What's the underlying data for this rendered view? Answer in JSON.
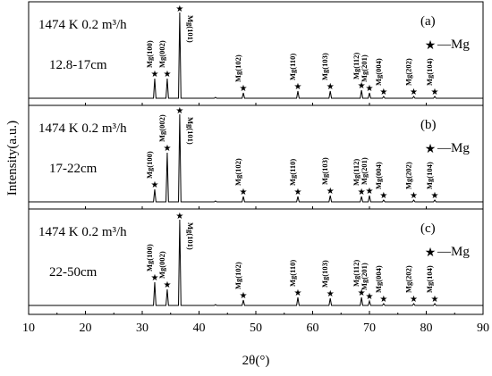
{
  "chart_data": {
    "type": "line",
    "xlabel": "2θ(°)",
    "ylabel": "Intensity(a.u.)",
    "xlim": [
      10,
      90
    ],
    "x_ticks": [
      "10",
      "20",
      "30",
      "40",
      "50",
      "60",
      "70",
      "80",
      "90"
    ],
    "legend_label": "—Mg",
    "panels": [
      {
        "panel_label": "(a)",
        "condition": "1474 K   0.2 m³/h",
        "range": "12.8-17cm",
        "peaks": [
          {
            "two_theta": 32.2,
            "intensity": 0.22,
            "label": "Mg(100)"
          },
          {
            "two_theta": 34.4,
            "intensity": 0.22,
            "label": "Mg(002)"
          },
          {
            "two_theta": 36.6,
            "intensity": 0.96,
            "label": "Mg(101)"
          },
          {
            "two_theta": 42.9,
            "intensity": 0.01,
            "label": ""
          },
          {
            "two_theta": 47.8,
            "intensity": 0.06,
            "label": "Mg(102)"
          },
          {
            "two_theta": 57.4,
            "intensity": 0.08,
            "label": "Mg(110)"
          },
          {
            "two_theta": 63.1,
            "intensity": 0.08,
            "label": "Mg(103)"
          },
          {
            "two_theta": 68.6,
            "intensity": 0.09,
            "label": "Mg(112)"
          },
          {
            "two_theta": 70.0,
            "intensity": 0.06,
            "label": "Mg(201)"
          },
          {
            "two_theta": 72.5,
            "intensity": 0.02,
            "label": "Mg(004)"
          },
          {
            "two_theta": 77.8,
            "intensity": 0.02,
            "label": "Mg(202)"
          },
          {
            "two_theta": 81.5,
            "intensity": 0.02,
            "label": "Mg(104)"
          }
        ]
      },
      {
        "panel_label": "(b)",
        "condition": "1474 K   0.2 m³/h",
        "range": "17-22cm",
        "peaks": [
          {
            "two_theta": 32.2,
            "intensity": 0.14,
            "label": "Mg(100)"
          },
          {
            "two_theta": 34.4,
            "intensity": 0.55,
            "label": "Mg(002)"
          },
          {
            "two_theta": 36.6,
            "intensity": 0.98,
            "label": "Mg(101)"
          },
          {
            "two_theta": 42.9,
            "intensity": 0.01,
            "label": ""
          },
          {
            "two_theta": 47.8,
            "intensity": 0.06,
            "label": "Mg(102)"
          },
          {
            "two_theta": 57.4,
            "intensity": 0.06,
            "label": "Mg(110)"
          },
          {
            "two_theta": 63.1,
            "intensity": 0.07,
            "label": "Mg(103)"
          },
          {
            "two_theta": 68.6,
            "intensity": 0.06,
            "label": "Mg(112)"
          },
          {
            "two_theta": 70.0,
            "intensity": 0.07,
            "label": "Mg(201)"
          },
          {
            "two_theta": 72.5,
            "intensity": 0.02,
            "label": "Mg(004)"
          },
          {
            "two_theta": 77.8,
            "intensity": 0.02,
            "label": "Mg(202)"
          },
          {
            "two_theta": 81.5,
            "intensity": 0.02,
            "label": "Mg(104)"
          }
        ]
      },
      {
        "panel_label": "(c)",
        "condition": "1474 K   0.2 m³/h",
        "range": "22-50cm",
        "peaks": [
          {
            "two_theta": 32.2,
            "intensity": 0.26,
            "label": "Mg(100)"
          },
          {
            "two_theta": 34.4,
            "intensity": 0.18,
            "label": "Mg(002)"
          },
          {
            "two_theta": 36.6,
            "intensity": 0.96,
            "label": "Mg(101)"
          },
          {
            "two_theta": 42.9,
            "intensity": 0.01,
            "label": ""
          },
          {
            "two_theta": 47.8,
            "intensity": 0.06,
            "label": "Mg(102)"
          },
          {
            "two_theta": 57.4,
            "intensity": 0.09,
            "label": "Mg(110)"
          },
          {
            "two_theta": 63.1,
            "intensity": 0.08,
            "label": "Mg(103)"
          },
          {
            "two_theta": 68.6,
            "intensity": 0.09,
            "label": "Mg(112)"
          },
          {
            "two_theta": 70.0,
            "intensity": 0.05,
            "label": "Mg(201)"
          },
          {
            "two_theta": 72.5,
            "intensity": 0.02,
            "label": "Mg(004)"
          },
          {
            "two_theta": 77.8,
            "intensity": 0.02,
            "label": "Mg(202)"
          },
          {
            "two_theta": 81.5,
            "intensity": 0.02,
            "label": "Mg(104)"
          }
        ]
      }
    ],
    "grid": false,
    "line_color": "#000000"
  }
}
